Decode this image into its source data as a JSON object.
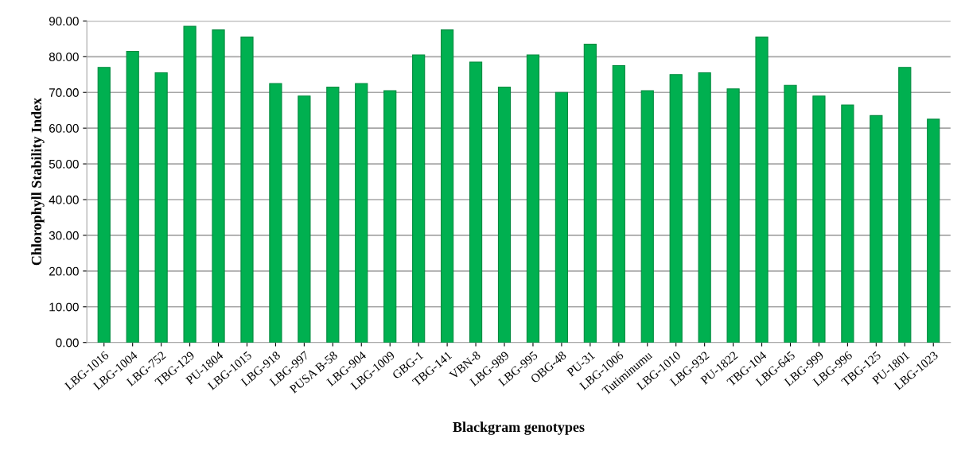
{
  "chart_data": {
    "type": "bar",
    "xlabel": "Blackgram genotypes",
    "ylabel": "Chlorophyll Stability Index",
    "categories": [
      "LBG-1016",
      "LBG-1004",
      "LBG-752",
      "TBG-129",
      "PU-1804",
      "LBG-1015",
      "LBG-918",
      "LBG-997",
      "PUSA B-58",
      "LBG-904",
      "LBG-1009",
      "GBG-1",
      "TBG-141",
      "VBN-8",
      "LBG-989",
      "LBG-995",
      "OBG-48",
      "PU-31",
      "LBG-1006",
      "Tutiminumu",
      "LBG-1010",
      "LBG-932",
      "PU-1822",
      "TBG-104",
      "LBG-645",
      "LBG-999",
      "LBG-996",
      "TBG-125",
      "PU-1801",
      "LBG-1023"
    ],
    "values": [
      77,
      81.5,
      75.5,
      88.5,
      87.5,
      85.5,
      72.5,
      69,
      71.5,
      72.5,
      70.5,
      80.5,
      87.5,
      78.5,
      71.5,
      80.5,
      70,
      83.5,
      77.5,
      70.5,
      75,
      75.5,
      71,
      85.5,
      72,
      69,
      66.5,
      63.5,
      77,
      62.5
    ],
    "color": "#00b050",
    "ylim": [
      0,
      90
    ],
    "yticks": [
      {
        "value": 0,
        "label": "0.00"
      },
      {
        "value": 10,
        "label": "10.00"
      },
      {
        "value": 20,
        "label": "20.00"
      },
      {
        "value": 30,
        "label": "30.00"
      },
      {
        "value": 40,
        "label": "40.00"
      },
      {
        "value": 50,
        "label": "50.00"
      },
      {
        "value": 60,
        "label": "60.00"
      },
      {
        "value": 70,
        "label": "70.00"
      },
      {
        "value": 80,
        "label": "80.00"
      },
      {
        "value": 90,
        "label": "90.00"
      }
    ],
    "grid": "y"
  }
}
